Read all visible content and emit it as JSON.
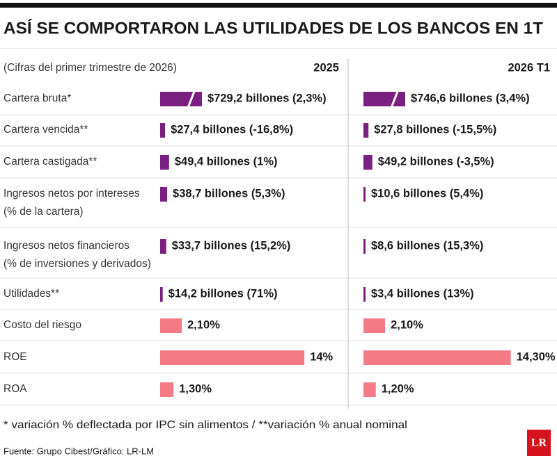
{
  "title": "ASÍ SE COMPORTARON LAS UTILIDADES DE LOS BANCOS EN 1T",
  "subtitle": "(Cifras del primer trimestre de 2026)",
  "columns": [
    "2025",
    "2026 T1"
  ],
  "rows": [
    {
      "label": [
        "Cartera bruta*"
      ],
      "unit": "billones",
      "broken_axis": true,
      "color": "#7b2080",
      "values": [
        729.2,
        746.6
      ],
      "value_labels": [
        "$729,2 billones (2,3%)",
        "$746,6 billones (3,4%)"
      ]
    },
    {
      "label": [
        "Cartera vencida**"
      ],
      "unit": "billones",
      "color": "#7b2080",
      "values": [
        27.4,
        27.8
      ],
      "value_labels": [
        "$27,4 billones (-16,8%)",
        "$27,8 billones (-15,5%)"
      ]
    },
    {
      "label": [
        "Cartera castigada**"
      ],
      "unit": "billones",
      "color": "#7b2080",
      "values": [
        49.4,
        49.2
      ],
      "value_labels": [
        "$49,4 billones (1%)",
        "$49,2 billones (-3,5%)"
      ]
    },
    {
      "label": [
        "Ingresos netos por intereses",
        "(% de la cartera)"
      ],
      "unit": "billones",
      "color": "#7b2080",
      "values": [
        38.7,
        10.6
      ],
      "value_labels": [
        "$38,7 billones (5,3%)",
        "$10,6 billones (5,4%)"
      ]
    },
    {
      "label": [
        "Ingresos netos financieros",
        "(% de inversiones y derivados)"
      ],
      "unit": "billones",
      "color": "#7b2080",
      "values": [
        33.7,
        8.6
      ],
      "value_labels": [
        "$33,7 billones (15,2%)",
        "$8,6 billones (15,3%)"
      ]
    },
    {
      "label": [
        "Utilidades**"
      ],
      "unit": "billones",
      "color": "#7b2080",
      "values": [
        14.2,
        3.4
      ],
      "value_labels": [
        "$14,2 billones (71%)",
        "$3,4 billones (13%)"
      ]
    },
    {
      "label": [
        "Costo del riesgo"
      ],
      "unit": "%",
      "color": "#f47a86",
      "values": [
        2.1,
        2.1
      ],
      "value_labels": [
        "2,10%",
        "2,10%"
      ]
    },
    {
      "label": [
        "ROE"
      ],
      "unit": "%",
      "color": "#f47a86",
      "values": [
        14,
        14.3
      ],
      "value_labels": [
        "14%",
        "14,30%"
      ]
    },
    {
      "label": [
        "ROA"
      ],
      "unit": "%",
      "color": "#f47a86",
      "values": [
        1.3,
        1.2
      ],
      "value_labels": [
        "1,30%",
        "1,20%"
      ]
    }
  ],
  "footnote": "* variación % deflectada por IPC sin alimentos / **variación % anual nominal",
  "source": "Fuente: Grupo Cibest/Gráfico: LR-LM",
  "logo": "LR"
}
